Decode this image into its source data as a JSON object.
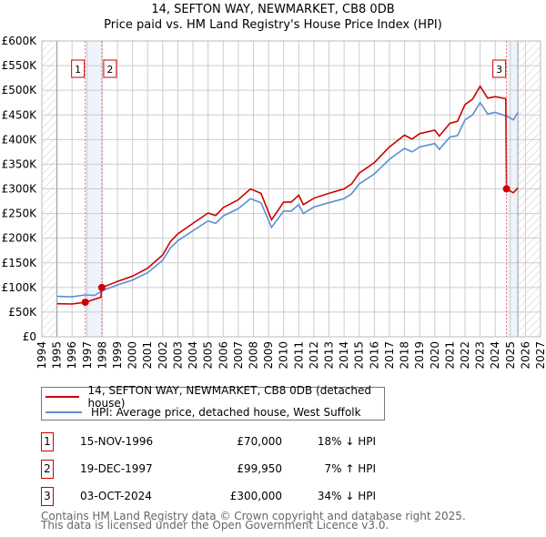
{
  "chart_data": {
    "type": "line",
    "title": "14, SEFTON WAY, NEWMARKET, CB8 0DB",
    "subtitle": "Price paid vs. HM Land Registry's House Price Index (HPI)",
    "xlim": [
      1994,
      2027
    ],
    "ylim": [
      0,
      600000
    ],
    "x_ticks": [
      "1994",
      "1995",
      "1996",
      "1997",
      "1998",
      "1999",
      "2000",
      "2001",
      "2002",
      "2003",
      "2004",
      "2005",
      "2006",
      "2007",
      "2008",
      "2009",
      "2010",
      "2011",
      "2012",
      "2013",
      "2014",
      "2015",
      "2016",
      "2017",
      "2018",
      "2019",
      "2020",
      "2021",
      "2022",
      "2023",
      "2024",
      "2025",
      "2026",
      "2027"
    ],
    "y_ticks": [
      {
        "v": 0,
        "label": "£0"
      },
      {
        "v": 50000,
        "label": "£50K"
      },
      {
        "v": 100000,
        "label": "£100K"
      },
      {
        "v": 150000,
        "label": "£150K"
      },
      {
        "v": 200000,
        "label": "£200K"
      },
      {
        "v": 250000,
        "label": "£250K"
      },
      {
        "v": 300000,
        "label": "£300K"
      },
      {
        "v": 350000,
        "label": "£350K"
      },
      {
        "v": 400000,
        "label": "£400K"
      },
      {
        "v": 450000,
        "label": "£450K"
      },
      {
        "v": 500000,
        "label": "£500K"
      },
      {
        "v": 550000,
        "label": "£550K"
      },
      {
        "v": 600000,
        "label": "£600K"
      }
    ],
    "grid": true,
    "data_range": [
      1995,
      2025.5
    ],
    "series": [
      {
        "name": "14, SEFTON WAY, NEWMARKET, CB8 0DB (detached house)",
        "color": "#cc0000",
        "x": [
          1995,
          1996,
          1996.87,
          1997.9,
          1997.97,
          1999,
          2000,
          2001,
          2002,
          2002.5,
          2003,
          2004,
          2005,
          2005.5,
          2006,
          2007,
          2007.8,
          2008.5,
          2009.2,
          2010,
          2010.5,
          2011,
          2011.3,
          2012,
          2013,
          2014,
          2014.5,
          2015,
          2016,
          2016.5,
          2017,
          2018,
          2018.5,
          2019,
          2020,
          2020.3,
          2021,
          2021.5,
          2022,
          2022.5,
          2023,
          2023.5,
          2024,
          2024.7,
          2024.75,
          2025.2,
          2025.5
        ],
        "y": [
          67000,
          66500,
          70000,
          80000,
          99950,
          112000,
          123000,
          139000,
          166000,
          193000,
          209000,
          230000,
          251000,
          246000,
          262000,
          278000,
          300000,
          291000,
          237000,
          273000,
          273000,
          287000,
          268000,
          281000,
          291000,
          300000,
          310000,
          332000,
          353000,
          369000,
          385000,
          409000,
          401000,
          412000,
          419000,
          407000,
          433000,
          437000,
          471000,
          482000,
          508000,
          484000,
          487000,
          483000,
          300000,
          292000,
          302000
        ]
      },
      {
        "name": "HPI: Average price, detached house, West Suffolk",
        "color": "#5b8fd0",
        "x": [
          1995,
          1996,
          1996.87,
          1997.5,
          1997.97,
          1999,
          2000,
          2001,
          2002,
          2002.5,
          2003,
          2004,
          2005,
          2005.5,
          2006,
          2007,
          2007.8,
          2008.5,
          2009.2,
          2010,
          2010.5,
          2011,
          2011.3,
          2012,
          2013,
          2014,
          2014.5,
          2015,
          2016,
          2016.5,
          2017,
          2018,
          2018.5,
          2019,
          2020,
          2020.3,
          2021,
          2021.5,
          2022,
          2022.5,
          2023,
          2023.5,
          2024,
          2024.8,
          2025.2,
          2025.5
        ],
        "y": [
          82000,
          81000,
          85000,
          84000,
          93000,
          105000,
          115000,
          130000,
          155000,
          180000,
          195000,
          215000,
          235000,
          230000,
          245000,
          260000,
          280000,
          272000,
          222000,
          255000,
          255000,
          268000,
          250000,
          263000,
          272000,
          280000,
          290000,
          310000,
          330000,
          345000,
          360000,
          382000,
          375000,
          385000,
          392000,
          380000,
          405000,
          408000,
          440000,
          450000,
          475000,
          452000,
          455000,
          447000,
          440000,
          455000
        ]
      }
    ],
    "sales": [
      {
        "n": "1",
        "x": 1996.87,
        "y": 70000,
        "date": "15-NOV-1996",
        "price": "£70,000",
        "hpi": "18% ↓ HPI"
      },
      {
        "n": "2",
        "x": 1997.97,
        "y": 99950,
        "date": "19-DEC-1997",
        "price": "£99,950",
        "hpi": "7% ↑ HPI"
      },
      {
        "n": "3",
        "x": 2024.75,
        "y": 300000,
        "date": "03-OCT-2024",
        "price": "£300,000",
        "hpi": "34% ↓ HPI"
      }
    ]
  },
  "footer": [
    "Contains HM Land Registry data © Crown copyright and database right 2025.",
    "This data is licensed under the Open Government Licence v3.0."
  ]
}
